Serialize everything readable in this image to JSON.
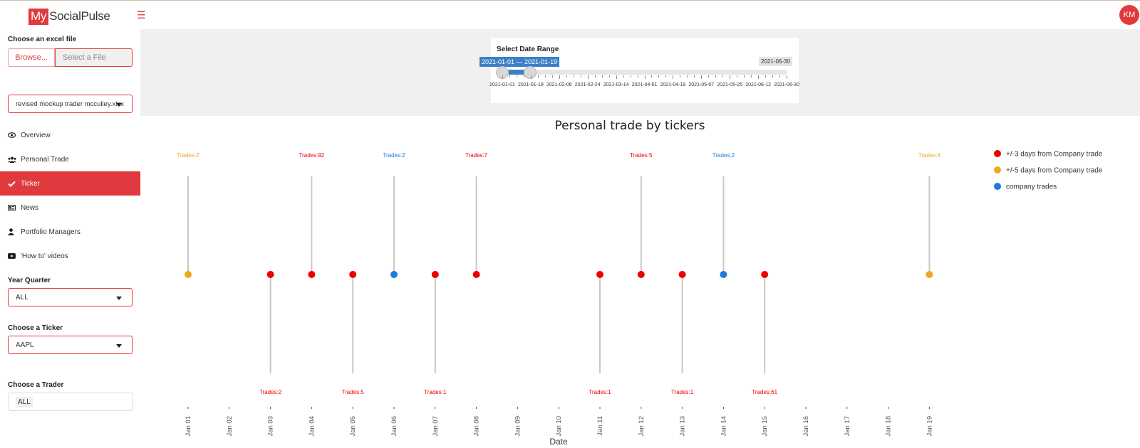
{
  "app": {
    "logo_my": "My",
    "logo_rest": "SocialPulse",
    "user_initials": "KM",
    "accent": "#e03a3e"
  },
  "sidebar": {
    "file_label": "Choose an excel file",
    "browse_label": "Browse...",
    "file_placeholder": "Select a File",
    "selected_file": "revised mockup trader mcculley.xlsx",
    "nav": [
      {
        "label": "Overview",
        "icon": "eye-icon"
      },
      {
        "label": "Personal Trade",
        "icon": "users-icon"
      },
      {
        "label": "Ticker",
        "icon": "check-icon",
        "active": true
      },
      {
        "label": "News",
        "icon": "newspaper-icon"
      },
      {
        "label": "Portfolio Managers",
        "icon": "user-icon"
      },
      {
        "label": "'How to' videos",
        "icon": "youtube-icon"
      }
    ],
    "year_quarter_label": "Year Quarter",
    "year_quarter_value": "ALL",
    "ticker_label": "Choose a Ticker",
    "ticker_value": "AAPL",
    "trader_label": "Choose a Trader",
    "trader_value": "ALL"
  },
  "date_range": {
    "title": "Select Date Range",
    "selected": "2021-01-01 — 2021-01-19",
    "max_label": "2021-06-30",
    "ticks": [
      "2021-01-01",
      "2021-01-19",
      "2021-02-06",
      "2021-02-24",
      "2021-03-14",
      "2021-04-01",
      "2021-04-19",
      "2021-05-07",
      "2021-05-25",
      "2021-06-12",
      "2021-06-30"
    ]
  },
  "chart_data": {
    "type": "scatter",
    "title": "Personal trade by tickers",
    "xlabel": "Date",
    "categories": [
      "Jan 01",
      "Jan 02",
      "Jan 03",
      "Jan 04",
      "Jan 05",
      "Jan 06",
      "Jan 07",
      "Jan 08",
      "Jan 09",
      "Jan 10",
      "Jan 11",
      "Jan 12",
      "Jan 13",
      "Jan 14",
      "Jan 15",
      "Jan 16",
      "Jan 17",
      "Jan 18",
      "Jan 19"
    ],
    "series": [
      {
        "name": "+/-3 days  from Company trade",
        "color": "#ee0000"
      },
      {
        "name": "+/-5 days  from Company trade",
        "color": "#f0a71e"
      },
      {
        "name": "company trades",
        "color": "#1e7be0"
      }
    ],
    "points": [
      {
        "x": "Jan 01",
        "series": 1,
        "label": "Trades:2",
        "pos": "top"
      },
      {
        "x": "Jan 03",
        "series": 0,
        "label": "Trades:2",
        "pos": "bottom"
      },
      {
        "x": "Jan 04",
        "series": 0,
        "label": "Trades:92",
        "pos": "top"
      },
      {
        "x": "Jan 05",
        "series": 0,
        "label": "Trades:5",
        "pos": "bottom"
      },
      {
        "x": "Jan 06",
        "series": 2,
        "label": "Trades:2",
        "pos": "top"
      },
      {
        "x": "Jan 07",
        "series": 0,
        "label": "Trades:1",
        "pos": "bottom"
      },
      {
        "x": "Jan 08",
        "series": 0,
        "label": "Trades:7",
        "pos": "top"
      },
      {
        "x": "Jan 11",
        "series": 0,
        "label": "Trades:1",
        "pos": "bottom"
      },
      {
        "x": "Jan 12",
        "series": 0,
        "label": "Trades:5",
        "pos": "top"
      },
      {
        "x": "Jan 13",
        "series": 0,
        "label": "Trades:1",
        "pos": "bottom"
      },
      {
        "x": "Jan 14",
        "series": 2,
        "label": "Trades:2",
        "pos": "top"
      },
      {
        "x": "Jan 15",
        "series": 0,
        "label": "Trades:61",
        "pos": "bottom"
      },
      {
        "x": "Jan 19",
        "series": 1,
        "label": "Trades:4",
        "pos": "top"
      }
    ],
    "legend": "top-right",
    "grid": false
  }
}
